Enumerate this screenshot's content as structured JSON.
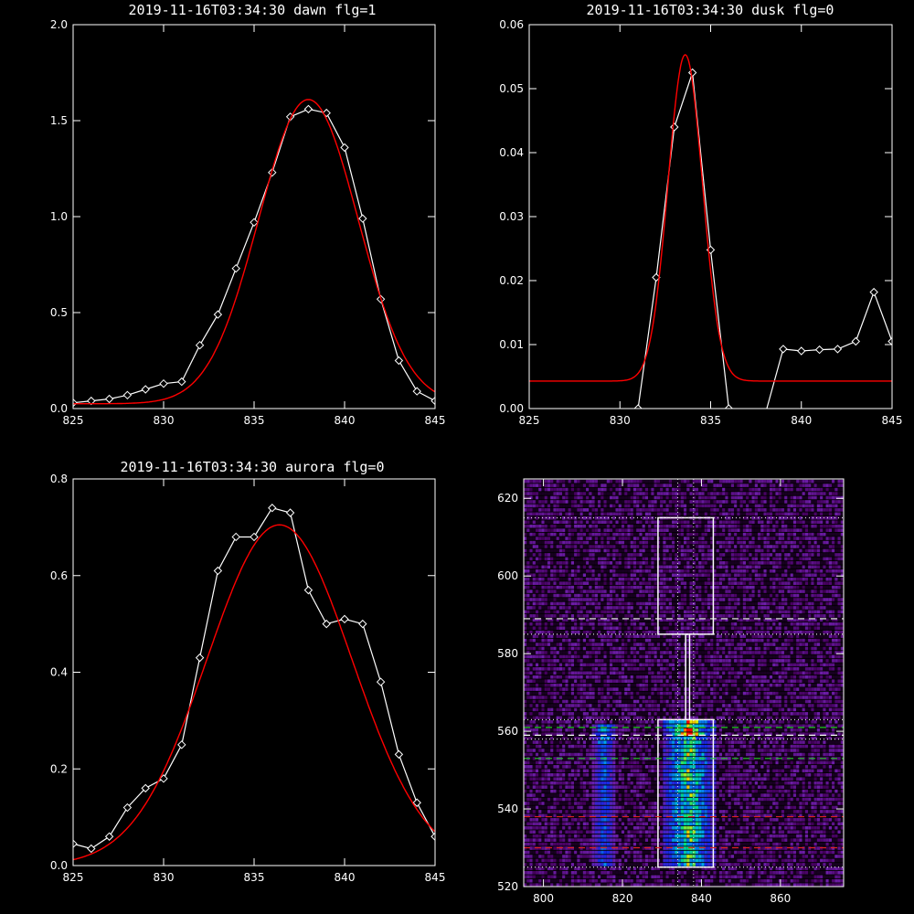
{
  "chart_data": [
    {
      "type": "line",
      "title": "2019-11-16T03:34:30 dawn flg=1",
      "xlim": [
        825,
        845
      ],
      "ylim": [
        0,
        2.0
      ],
      "xticks": [
        825,
        830,
        835,
        840,
        845
      ],
      "yticks": [
        0.0,
        0.5,
        1.0,
        1.5,
        2.0
      ],
      "xtick_labels": [
        "825",
        "830",
        "835",
        "840",
        "845"
      ],
      "ytick_labels": [
        "0.0",
        "0.5",
        "1.0",
        "1.5",
        "2.0"
      ],
      "series": [
        {
          "color": "#ffffff",
          "markers": "diamond",
          "x": [
            825,
            826,
            827,
            828,
            829,
            830,
            831,
            832,
            833,
            834,
            835,
            836,
            837,
            838,
            839,
            840,
            841,
            842,
            843,
            844,
            845
          ],
          "y": [
            0.03,
            0.04,
            0.05,
            0.07,
            0.1,
            0.13,
            0.14,
            0.33,
            0.49,
            0.73,
            0.97,
            1.23,
            1.52,
            1.56,
            1.54,
            1.36,
            0.99,
            0.57,
            0.25,
            0.09,
            0.04
          ]
        },
        {
          "color": "#ff0000",
          "curve": "gaussian",
          "params": {
            "amplitude": 1.585,
            "center": 838.0,
            "sigma": 2.75,
            "offset": 0.025
          },
          "x": [
            825,
            845
          ]
        }
      ]
    },
    {
      "type": "line",
      "title": "2019-11-16T03:34:30 dusk flg=0",
      "xlim": [
        825,
        845
      ],
      "ylim": [
        0,
        0.06
      ],
      "xticks": [
        825,
        830,
        835,
        840,
        845
      ],
      "yticks": [
        0.0,
        0.01,
        0.02,
        0.03,
        0.04,
        0.05,
        0.06
      ],
      "xtick_labels": [
        "825",
        "830",
        "835",
        "840",
        "845"
      ],
      "ytick_labels": [
        "0.00",
        "0.01",
        "0.02",
        "0.03",
        "0.04",
        "0.05",
        "0.06"
      ],
      "series": [
        {
          "color": "#ffffff",
          "markers": "diamond",
          "x": [
            825,
            826,
            827,
            828,
            829,
            830,
            831,
            832,
            833,
            834,
            835,
            836,
            837,
            838,
            839,
            840,
            841,
            842,
            843,
            844,
            845
          ],
          "y": [
            -0.001,
            -0.001,
            -0.001,
            -0.001,
            -0.001,
            -0.001,
            0.0,
            0.0205,
            0.044,
            0.0525,
            0.0248,
            0.0,
            -0.001,
            -0.001,
            0.0093,
            0.009,
            0.0092,
            0.0093,
            0.0105,
            0.0182,
            0.0105
          ]
        },
        {
          "color": "#ff0000",
          "curve": "gaussian",
          "params": {
            "amplitude": 0.051,
            "center": 833.6,
            "sigma": 0.95,
            "offset": 0.0043
          },
          "x": [
            825,
            845
          ]
        }
      ]
    },
    {
      "type": "line",
      "title": "2019-11-16T03:34:30 aurora flg=0",
      "xlim": [
        825,
        845
      ],
      "ylim": [
        0,
        0.8
      ],
      "xticks": [
        825,
        830,
        835,
        840,
        845
      ],
      "yticks": [
        0.0,
        0.2,
        0.4,
        0.6,
        0.8
      ],
      "xtick_labels": [
        "825",
        "830",
        "835",
        "840",
        "845"
      ],
      "ytick_labels": [
        "0.0",
        "0.2",
        "0.4",
        "0.6",
        "0.8"
      ],
      "series": [
        {
          "color": "#ffffff",
          "markers": "diamond",
          "x": [
            825,
            826,
            827,
            828,
            829,
            830,
            831,
            832,
            833,
            834,
            835,
            836,
            837,
            838,
            839,
            840,
            841,
            842,
            843,
            844,
            845
          ],
          "y": [
            0.045,
            0.035,
            0.06,
            0.12,
            0.16,
            0.18,
            0.25,
            0.43,
            0.61,
            0.68,
            0.68,
            0.74,
            0.73,
            0.57,
            0.5,
            0.51,
            0.5,
            0.38,
            0.23,
            0.13,
            0.06
          ]
        },
        {
          "color": "#ff0000",
          "curve": "gaussian",
          "params": {
            "amplitude": 0.705,
            "center": 836.4,
            "sigma": 4.0,
            "offset": 0.0
          },
          "x": [
            825,
            845
          ]
        }
      ]
    },
    {
      "type": "heatmap",
      "title": "",
      "xlim": [
        795,
        876
      ],
      "ylim": [
        520,
        625
      ],
      "xticks": [
        800,
        820,
        840,
        860
      ],
      "yticks": [
        520,
        540,
        560,
        580,
        600,
        620
      ],
      "xtick_labels": [
        "800",
        "820",
        "840",
        "860"
      ],
      "ytick_labels": [
        "520",
        "540",
        "560",
        "580",
        "600",
        "620"
      ],
      "hot_regions": [
        {
          "x": [
            812,
            818
          ],
          "y": [
            525,
            561
          ],
          "peak": 0.55
        },
        {
          "x": [
            830,
            843
          ],
          "y": [
            525,
            563
          ],
          "peak": 1.0
        }
      ],
      "boxes": [
        {
          "x": [
            829,
            843
          ],
          "y": [
            585,
            615
          ]
        },
        {
          "x": [
            829,
            843
          ],
          "y": [
            525,
            563
          ]
        },
        {
          "x": [
            836,
            837
          ],
          "y": [
            563,
            585
          ]
        }
      ],
      "hlines_dotted_white": [
        615,
        585,
        563,
        558,
        525
      ],
      "hlines_dashed_white": [
        589,
        559
      ],
      "hlines_dashed_green": [
        561,
        553
      ],
      "hlines_dashed_red": [
        538,
        530
      ],
      "vlines_dotted_white": [
        834,
        838
      ]
    }
  ]
}
